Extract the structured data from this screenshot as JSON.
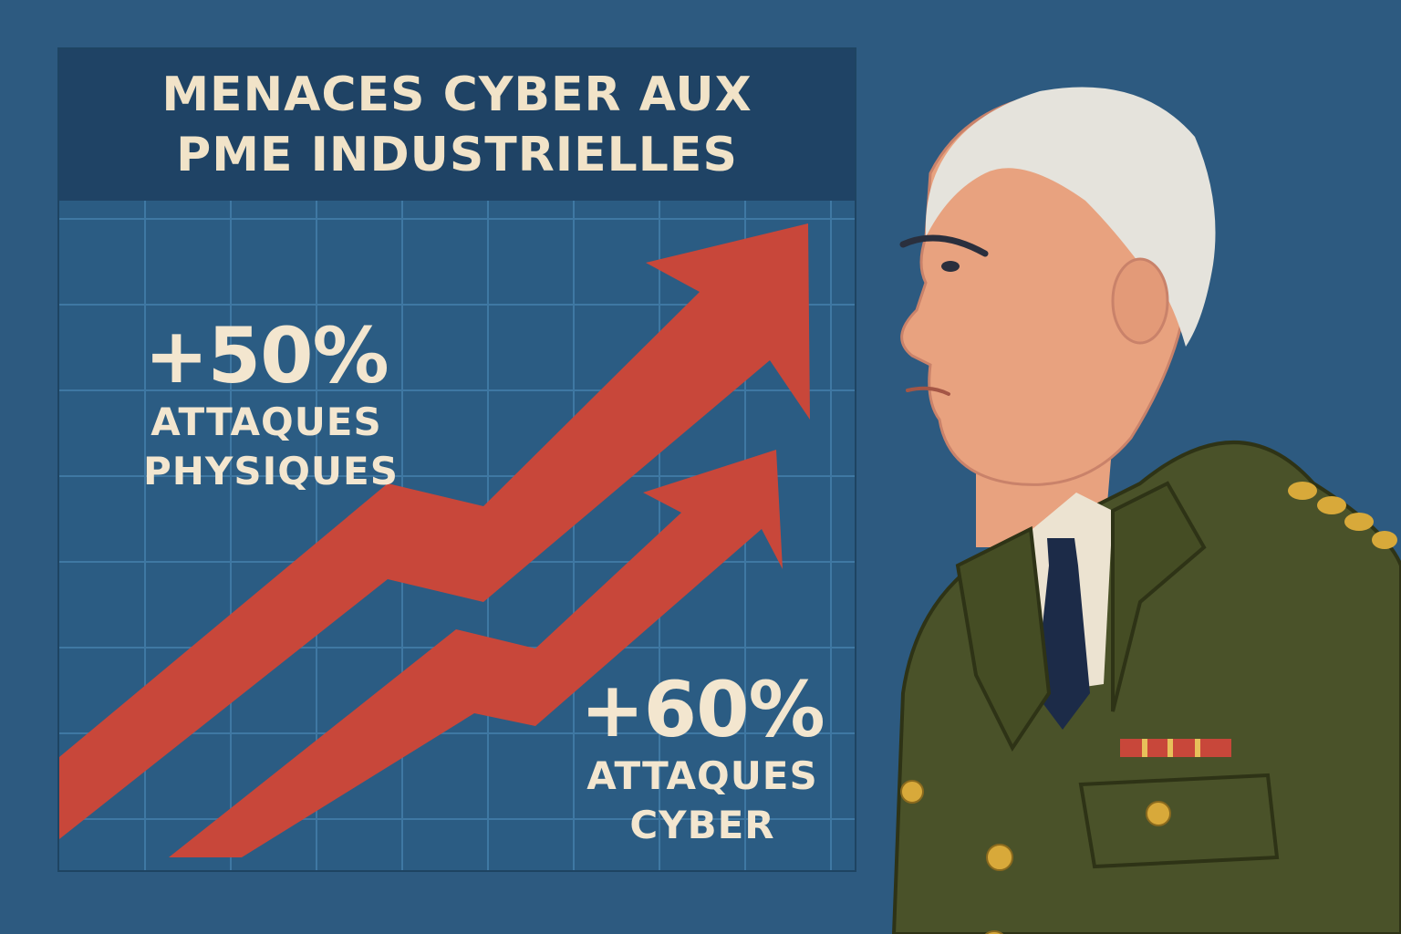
{
  "poster": {
    "title_line1": "MENACES CYBER AUX",
    "title_line2": "PME INDUSTRIELLES"
  },
  "stats": {
    "physical": {
      "value": "+50%",
      "line1": "ATTAQUES",
      "line2": "PHYSIQUES"
    },
    "cyber": {
      "value": "+60%",
      "line1": "ATTAQUES",
      "line2": "CYBER"
    }
  },
  "colors": {
    "background": "#2d5a80",
    "title_bar": "#1f4365",
    "arrow": "#c8473a",
    "text": "#f1e3c8",
    "uniform": "#4a5229"
  },
  "icons": [
    "arrow-up-trend-icon",
    "officer-illustration"
  ]
}
